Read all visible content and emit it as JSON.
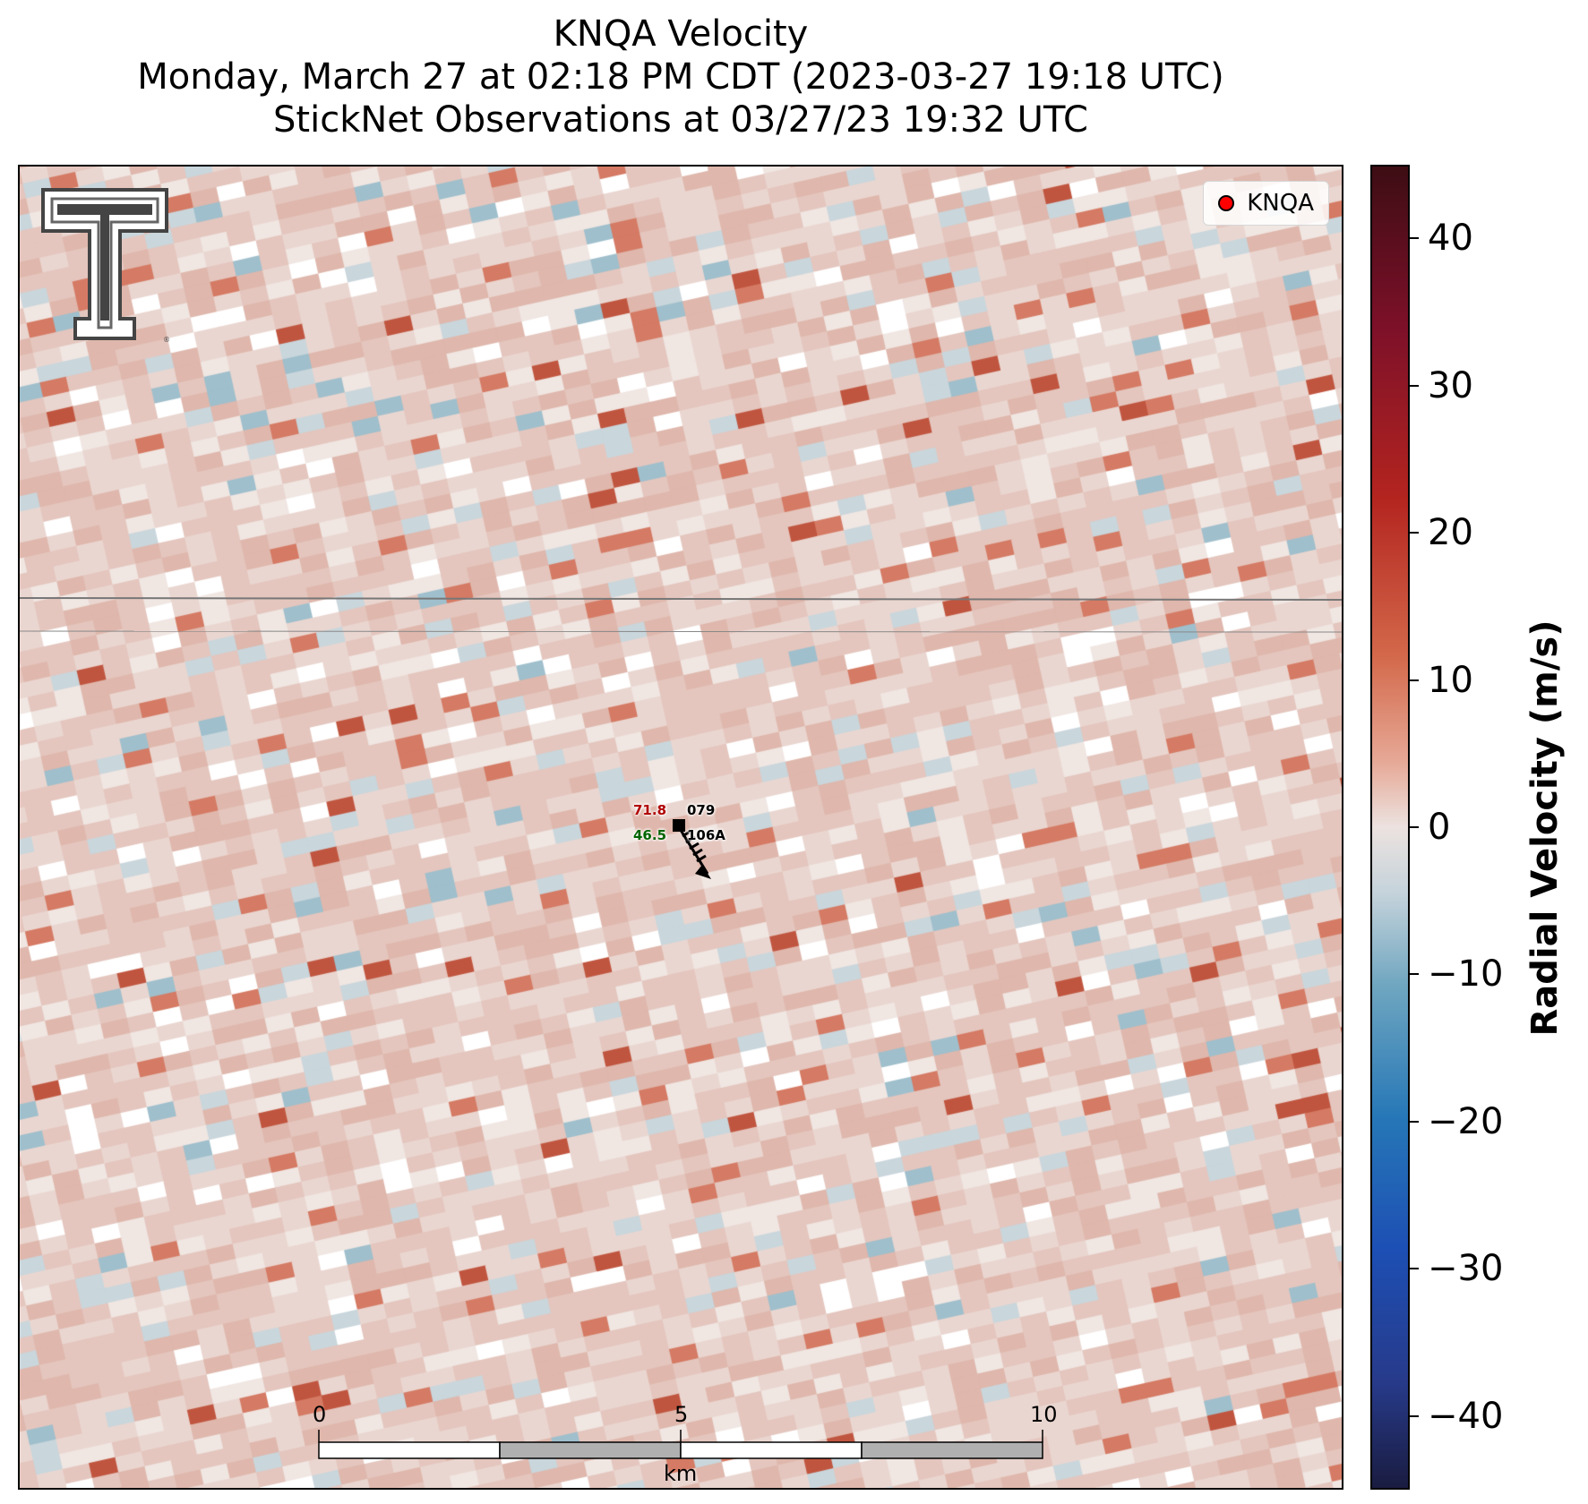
{
  "title": {
    "line1": "KNQA Velocity",
    "line2": "Monday, March 27 at 02:18 PM CDT (2023-03-27 19:18 UTC)",
    "line3": "StickNet Observations at 03/27/23 19:32 UTC"
  },
  "legend": {
    "label": "KNQA",
    "marker_color": "#ff0000"
  },
  "station": {
    "temperature": "71.8",
    "dewpoint": "46.5",
    "wind_direction_label": "079",
    "station_id": "106A",
    "marker_icon": "station-square-icon",
    "barb_icon": "wind-barb-icon"
  },
  "scale_bar": {
    "unit": "km",
    "labels": [
      "0",
      "5",
      "10"
    ],
    "fill_colors": [
      "#ffffff",
      "#b0b0b0"
    ]
  },
  "colorbar": {
    "title": "Radial Velocity (m/s)",
    "range": [
      -45,
      45
    ],
    "ticks": [
      "40",
      "30",
      "20",
      "10",
      "0",
      "−10",
      "−20",
      "−30",
      "−40"
    ],
    "tick_values": [
      40,
      30,
      20,
      10,
      0,
      -10,
      -20,
      -30,
      -40
    ]
  },
  "logo": {
    "icon": "texas-tech-double-t-logo"
  }
}
